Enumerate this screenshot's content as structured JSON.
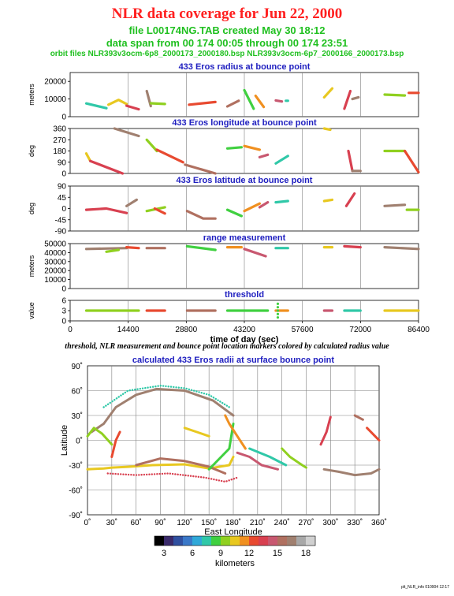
{
  "header": {
    "title": "NLR data coverage for Jun 22, 2000",
    "file_line": "file L00174NG.TAB created May 30 18:12",
    "span_line": "data span from 00 174 00:05 through 00 174 23:51",
    "orbit_line": "orbit files NLR393v3ocm-6p8_2000173_2000180.bsp NLR393v3ocm-6p7_2000166_2000173.bsp"
  },
  "caption": "threshold, NLR measurement and bounce point location markers colored by calculated radius value",
  "footer": "plt_NLR_info 010904 12:17",
  "colors": {
    "title": "#ff2020",
    "subtitle": "#20c020",
    "panel_title": "#2020c0",
    "colorbar": [
      "#000000",
      "#3a2a6a",
      "#3050a0",
      "#3a78c8",
      "#30a8d8",
      "#30c8a8",
      "#40d040",
      "#90d020",
      "#e8c820",
      "#f09020",
      "#e84a30",
      "#d84050",
      "#c85870",
      "#b07060",
      "#a08070",
      "#a8a8a8",
      "#d0d0d0"
    ]
  },
  "chart_data": [
    {
      "type": "scatter",
      "title": "433 Eros radius at bounce point",
      "ylabel": "meters",
      "xlim": [
        0,
        86400
      ],
      "ylim": [
        0,
        25000
      ],
      "yticks": [
        "20000",
        "10000",
        "0"
      ],
      "xticks": [],
      "segments": [
        {
          "x": [
            4000,
            9000
          ],
          "y": [
            7500,
            4800
          ]
        },
        {
          "x": [
            9500,
            12000,
            14000
          ],
          "y": [
            6800,
            9500,
            7200
          ]
        },
        {
          "x": [
            14000,
            17000
          ],
          "y": [
            6200,
            4200
          ]
        },
        {
          "x": [
            19000,
            20000
          ],
          "y": [
            14500,
            6000
          ]
        },
        {
          "x": [
            20000,
            23500
          ],
          "y": [
            7600,
            7200
          ]
        },
        {
          "x": [
            29500,
            36000
          ],
          "y": [
            6800,
            8300
          ]
        },
        {
          "x": [
            39000,
            41800
          ],
          "y": [
            5800,
            9000
          ]
        },
        {
          "x": [
            43200,
            45500
          ],
          "y": [
            15000,
            4500
          ]
        },
        {
          "x": [
            46000,
            48000
          ],
          "y": [
            11800,
            5500
          ]
        },
        {
          "x": [
            51000,
            52500
          ],
          "y": [
            9200,
            8600
          ]
        },
        {
          "x": [
            53500,
            54000
          ],
          "y": [
            9000,
            9000
          ]
        },
        {
          "x": [
            63000,
            65000
          ],
          "y": [
            11000,
            16000
          ]
        },
        {
          "x": [
            68000,
            69500
          ],
          "y": [
            4500,
            14500
          ]
        },
        {
          "x": [
            70000,
            71500
          ],
          "y": [
            10000,
            11000
          ]
        },
        {
          "x": [
            78000,
            83000
          ],
          "y": [
            12500,
            12000
          ]
        },
        {
          "x": [
            84000,
            86400
          ],
          "y": [
            13500,
            13500
          ]
        }
      ]
    },
    {
      "type": "scatter",
      "title": "433 Eros longitude at bounce point",
      "ylabel": "deg",
      "xlim": [
        0,
        86400
      ],
      "ylim": [
        0,
        360
      ],
      "yticks": [
        "360",
        "270",
        "180",
        "90",
        "0"
      ],
      "xticks": [],
      "segments": [
        {
          "x": [
            4000,
            5000
          ],
          "y": [
            160,
            100
          ]
        },
        {
          "x": [
            5000,
            13000
          ],
          "y": [
            100,
            0
          ]
        },
        {
          "x": [
            11000,
            17000
          ],
          "y": [
            360,
            300
          ]
        },
        {
          "x": [
            19000,
            21500
          ],
          "y": [
            270,
            180
          ]
        },
        {
          "x": [
            21500,
            28000
          ],
          "y": [
            190,
            90
          ]
        },
        {
          "x": [
            28500,
            36000
          ],
          "y": [
            70,
            0
          ]
        },
        {
          "x": [
            39000,
            42500
          ],
          "y": [
            200,
            210
          ]
        },
        {
          "x": [
            43200,
            47000
          ],
          "y": [
            220,
            190
          ]
        },
        {
          "x": [
            47000,
            49000
          ],
          "y": [
            130,
            150
          ]
        },
        {
          "x": [
            51000,
            54000
          ],
          "y": [
            80,
            140
          ]
        },
        {
          "x": [
            63000,
            64500
          ],
          "y": [
            360,
            350
          ]
        },
        {
          "x": [
            69000,
            70000
          ],
          "y": [
            180,
            20
          ]
        },
        {
          "x": [
            70000,
            72000
          ],
          "y": [
            20,
            20
          ]
        },
        {
          "x": [
            78000,
            83000
          ],
          "y": [
            180,
            180
          ]
        },
        {
          "x": [
            83000,
            86400
          ],
          "y": [
            180,
            10
          ]
        }
      ]
    },
    {
      "type": "scatter",
      "title": "433 Eros latitude at bounce point",
      "ylabel": "deg",
      "xlim": [
        0,
        86400
      ],
      "ylim": [
        -90,
        90
      ],
      "yticks": [
        "90",
        "45",
        "0",
        "-45",
        "-90"
      ],
      "xticks": [],
      "segments": [
        {
          "x": [
            4000,
            9000,
            14000
          ],
          "y": [
            -5,
            0,
            -18
          ]
        },
        {
          "x": [
            14000,
            16500
          ],
          "y": [
            10,
            35
          ]
        },
        {
          "x": [
            19000,
            23500
          ],
          "y": [
            -10,
            5
          ]
        },
        {
          "x": [
            21000,
            23500
          ],
          "y": [
            0,
            -20
          ]
        },
        {
          "x": [
            29000,
            33000,
            36000
          ],
          "y": [
            -10,
            -40,
            -40
          ]
        },
        {
          "x": [
            39000,
            42500
          ],
          "y": [
            -5,
            -30
          ]
        },
        {
          "x": [
            43200,
            47000
          ],
          "y": [
            -10,
            20
          ]
        },
        {
          "x": [
            47000,
            49000
          ],
          "y": [
            5,
            25
          ]
        },
        {
          "x": [
            51000,
            54000
          ],
          "y": [
            25,
            30
          ]
        },
        {
          "x": [
            63000,
            65000
          ],
          "y": [
            30,
            35
          ]
        },
        {
          "x": [
            68500,
            70500
          ],
          "y": [
            10,
            60
          ]
        },
        {
          "x": [
            78000,
            83000
          ],
          "y": [
            10,
            15
          ]
        },
        {
          "x": [
            83500,
            86400
          ],
          "y": [
            -5,
            -5
          ]
        }
      ]
    },
    {
      "type": "scatter",
      "title": "range measurement",
      "ylabel": "meters",
      "xlim": [
        0,
        86400
      ],
      "ylim": [
        0,
        50000
      ],
      "yticks": [
        "50000",
        "40000",
        "30000",
        "20000",
        "10000",
        "0"
      ],
      "xticks": [],
      "segments": [
        {
          "x": [
            4000,
            14000
          ],
          "y": [
            44000,
            45000
          ]
        },
        {
          "x": [
            9000,
            12000
          ],
          "y": [
            41000,
            43000
          ]
        },
        {
          "x": [
            14000,
            17000
          ],
          "y": [
            46000,
            45000
          ]
        },
        {
          "x": [
            19000,
            23500
          ],
          "y": [
            45000,
            45000
          ]
        },
        {
          "x": [
            29000,
            36000
          ],
          "y": [
            47000,
            43000
          ]
        },
        {
          "x": [
            39000,
            42500
          ],
          "y": [
            46000,
            46000
          ]
        },
        {
          "x": [
            43200,
            48500
          ],
          "y": [
            44000,
            36000
          ]
        },
        {
          "x": [
            51000,
            54000
          ],
          "y": [
            45000,
            45000
          ]
        },
        {
          "x": [
            63000,
            65000
          ],
          "y": [
            46000,
            46000
          ]
        },
        {
          "x": [
            68000,
            72000
          ],
          "y": [
            47000,
            46000
          ]
        },
        {
          "x": [
            78000,
            86400
          ],
          "y": [
            46000,
            44000
          ]
        }
      ]
    },
    {
      "type": "scatter",
      "title": "threshold",
      "ylabel": "value",
      "xlabel": "time of day (sec)",
      "xlim": [
        0,
        86400
      ],
      "ylim": [
        0,
        6
      ],
      "yticks": [
        "6",
        "3",
        "0"
      ],
      "xticks": [
        "0",
        "14400",
        "28800",
        "43200",
        "57600",
        "72000",
        "86400"
      ],
      "xtick_values": [
        0,
        14400,
        28800,
        43200,
        57600,
        72000,
        86400
      ],
      "segments": [
        {
          "x": [
            4000,
            17000
          ],
          "y": [
            3,
            3
          ]
        },
        {
          "x": [
            19000,
            23500
          ],
          "y": [
            3,
            3
          ]
        },
        {
          "x": [
            29000,
            36000
          ],
          "y": [
            3,
            3
          ]
        },
        {
          "x": [
            39000,
            49000
          ],
          "y": [
            3,
            3
          ]
        },
        {
          "x": [
            51000,
            54000
          ],
          "y": [
            3,
            3
          ]
        },
        {
          "x": [
            63000,
            65000
          ],
          "y": [
            3,
            3
          ]
        },
        {
          "x": [
            68000,
            72000
          ],
          "y": [
            3,
            3
          ]
        },
        {
          "x": [
            78000,
            86400
          ],
          "y": [
            3,
            3
          ]
        }
      ],
      "extra_points": {
        "x": [
          51500,
          51500,
          51500,
          51500,
          51500
        ],
        "y": [
          2,
          3,
          4,
          5,
          1
        ]
      }
    },
    {
      "type": "scatter",
      "title": "calculated 433 Eros radii at surface bounce point",
      "xlabel": "East Longitude",
      "ylabel": "Latitude",
      "xlim": [
        0,
        360
      ],
      "ylim": [
        -90,
        90
      ],
      "xticks": [
        "0˚",
        "30˚",
        "60˚",
        "90˚",
        "120˚",
        "150˚",
        "180˚",
        "210˚",
        "240˚",
        "270˚",
        "300˚",
        "330˚",
        "360˚"
      ],
      "yticks": [
        "90˚",
        "60˚",
        "30˚",
        "0˚",
        "-30˚",
        "-60˚",
        "-90˚"
      ],
      "curves": [
        {
          "x": [
            20,
            50,
            90,
            120,
            150,
            175
          ],
          "y": [
            40,
            60,
            66,
            63,
            55,
            40
          ],
          "dotted": true
        },
        {
          "x": [
            0,
            20,
            30,
            50,
            80,
            120,
            150,
            175,
            180
          ],
          "y": [
            -35,
            -34,
            -33,
            -32,
            -30,
            -29,
            -34,
            -30,
            -20
          ]
        },
        {
          "x": [
            25,
            60,
            100,
            145,
            170,
            185
          ],
          "y": [
            -40,
            -42,
            -40,
            -45,
            -50,
            -45
          ],
          "dotted": true
        },
        {
          "x": [
            5,
            20,
            35,
            60,
            85,
            120,
            155,
            180
          ],
          "y": [
            10,
            20,
            40,
            55,
            62,
            60,
            48,
            30
          ]
        },
        {
          "x": [
            0,
            8,
            18,
            30
          ],
          "y": [
            5,
            15,
            8,
            -5
          ]
        },
        {
          "x": [
            30,
            35,
            40
          ],
          "y": [
            -20,
            0,
            10
          ]
        },
        {
          "x": [
            60,
            90,
            120,
            150,
            170
          ],
          "y": [
            -30,
            -22,
            -25,
            -32,
            -40
          ]
        },
        {
          "x": [
            150,
            165,
            175,
            180
          ],
          "y": [
            -35,
            -20,
            -10,
            20
          ]
        },
        {
          "x": [
            170,
            175,
            185,
            195
          ],
          "y": [
            30,
            20,
            5,
            -10
          ]
        },
        {
          "x": [
            185,
            200,
            215,
            235
          ],
          "y": [
            -15,
            -20,
            -30,
            -35
          ]
        },
        {
          "x": [
            200,
            225,
            245
          ],
          "y": [
            -10,
            -20,
            -30
          ]
        },
        {
          "x": [
            120,
            135,
            150
          ],
          "y": [
            15,
            10,
            5
          ]
        },
        {
          "x": [
            288,
            295,
            300
          ],
          "y": [
            -5,
            10,
            28
          ]
        },
        {
          "x": [
            292,
            310,
            330,
            350,
            360
          ],
          "y": [
            -35,
            -38,
            -42,
            -40,
            -35
          ]
        },
        {
          "x": [
            240,
            250,
            265,
            270
          ],
          "y": [
            -10,
            -20,
            -30,
            -33
          ]
        },
        {
          "x": [
            345,
            355,
            360
          ],
          "y": [
            15,
            5,
            0
          ]
        },
        {
          "x": [
            330,
            340
          ],
          "y": [
            30,
            25
          ]
        }
      ]
    }
  ],
  "colorbar": {
    "ticks": [
      "3",
      "6",
      "9",
      "12",
      "15",
      "18"
    ],
    "tick_values": [
      3,
      6,
      9,
      12,
      15,
      18
    ],
    "range": [
      2,
      19
    ],
    "label": "kilometers"
  }
}
